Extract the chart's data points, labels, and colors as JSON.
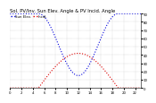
{
  "title": "Sol. PV/Inv. Sun Elev. Angle & PV Incid. Angle",
  "legend1": "Sun Elev.",
  "legend2": "Incid.",
  "blue_color": "#0000dd",
  "red_color": "#dd0000",
  "bg_color": "#ffffff",
  "grid_color": "#999999",
  "ylim": [
    0,
    90
  ],
  "xlim": [
    0,
    23
  ],
  "yticks": [
    0,
    10,
    20,
    30,
    40,
    50,
    60,
    70,
    80,
    90
  ],
  "xticks": [
    0,
    2,
    4,
    6,
    8,
    10,
    12,
    14,
    16,
    18,
    20,
    22
  ],
  "title_fontsize": 3.8,
  "tick_fontsize": 2.8,
  "legend_fontsize": 2.8,
  "linewidth": 0.8,
  "day_start": 5.0,
  "day_end": 19.0,
  "sun_alt_max": 42,
  "incidence_min": 15,
  "incidence_night": 90
}
